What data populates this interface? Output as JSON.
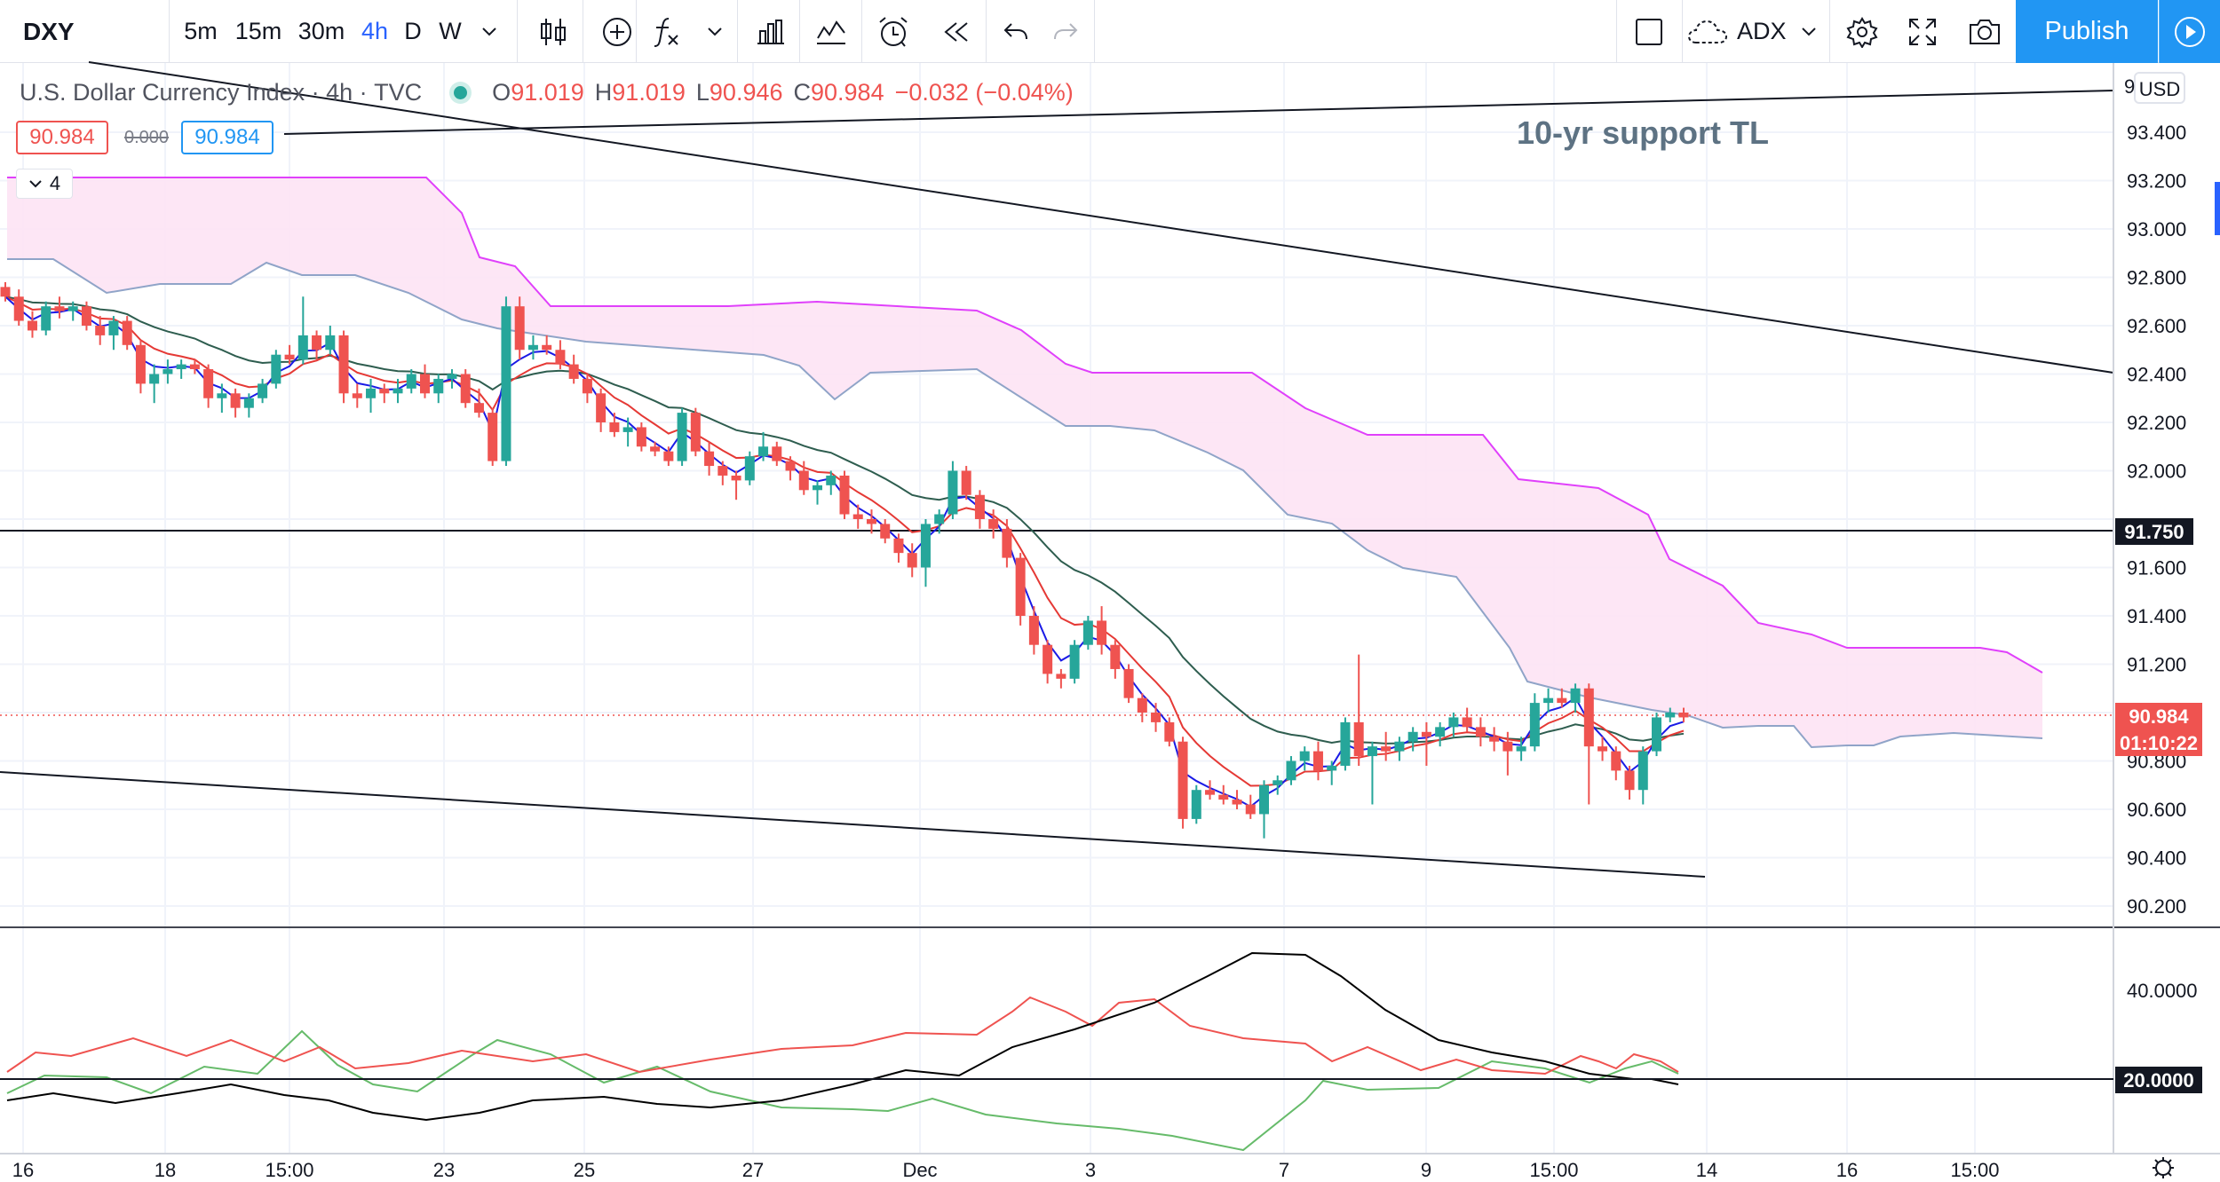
{
  "toolbar": {
    "symbol": "DXY",
    "intervals": [
      "5m",
      "15m",
      "30m",
      "4h",
      "D",
      "W"
    ],
    "active_interval": "4h",
    "indicator_name": "ADX",
    "publish_label": "Publish"
  },
  "legend": {
    "title": "U.S. Dollar Currency Index",
    "interval": "4h",
    "source": "TVC",
    "o_label": "O",
    "o_value": "91.019",
    "h_label": "H",
    "h_value": "91.019",
    "l_label": "L",
    "l_value": "90.946",
    "c_label": "C",
    "c_value": "90.984",
    "change": "−0.032 (−0.04%)",
    "bid": "90.984",
    "spread": "0.000",
    "ask": "90.984",
    "collapsed_count": "4"
  },
  "annotation": "10-yr support TL",
  "price_axis": {
    "currency": "USD",
    "top_cut_label": "9",
    "labels": [
      "93.400",
      "93.200",
      "93.000",
      "92.800",
      "92.600",
      "92.400",
      "92.200",
      "92.000",
      "91.600",
      "91.400",
      "91.200",
      "90.800",
      "90.600",
      "90.400",
      "90.200"
    ],
    "hline_label": "91.750",
    "current_price": "90.984",
    "countdown": "01:10:22"
  },
  "adx_axis": {
    "labels": [
      "40.0000"
    ],
    "level_label": "20.0000"
  },
  "time_axis": {
    "labels": [
      "16",
      "18",
      "15:00",
      "23",
      "25",
      "27",
      "Dec",
      "3",
      "7",
      "9",
      "15:00",
      "14",
      "16",
      "15:00"
    ]
  },
  "colors": {
    "up": "#26a69a",
    "down": "#ef5350",
    "cloud": "#fde3f4",
    "cloud_upper": "#e040fb",
    "cloud_lower": "#90a4c8",
    "ema_fast": "#1a1ae6",
    "ema_mid": "#e53935",
    "ema_slow": "#2e5d4f",
    "adx": "#000000",
    "di_plus": "#66bb6a",
    "di_minus": "#ef5350"
  },
  "chart_data": {
    "type": "candlestick",
    "price_range": [
      90.05,
      93.62
    ],
    "candles": [
      [
        92.76,
        92.78,
        92.7,
        92.72
      ],
      [
        92.72,
        92.75,
        92.6,
        92.62
      ],
      [
        92.62,
        92.66,
        92.55,
        92.58
      ],
      [
        92.58,
        92.7,
        92.56,
        92.68
      ],
      [
        92.68,
        92.72,
        92.63,
        92.66
      ],
      [
        92.66,
        92.7,
        92.62,
        92.68
      ],
      [
        92.68,
        92.7,
        92.58,
        92.6
      ],
      [
        92.6,
        92.64,
        92.52,
        92.56
      ],
      [
        92.56,
        92.64,
        92.5,
        92.62
      ],
      [
        92.62,
        92.64,
        92.5,
        92.52
      ],
      [
        92.52,
        92.54,
        92.32,
        92.36
      ],
      [
        92.36,
        92.44,
        92.28,
        92.4
      ],
      [
        92.4,
        92.46,
        92.36,
        92.42
      ],
      [
        92.42,
        92.46,
        92.38,
        92.44
      ],
      [
        92.44,
        92.46,
        92.4,
        92.42
      ],
      [
        92.42,
        92.44,
        92.26,
        92.3
      ],
      [
        92.3,
        92.36,
        92.24,
        92.32
      ],
      [
        92.32,
        92.34,
        92.22,
        92.26
      ],
      [
        92.26,
        92.32,
        92.22,
        92.3
      ],
      [
        92.3,
        92.38,
        92.28,
        92.36
      ],
      [
        92.36,
        92.5,
        92.34,
        92.48
      ],
      [
        92.48,
        92.52,
        92.44,
        92.46
      ],
      [
        92.46,
        92.72,
        92.44,
        92.56
      ],
      [
        92.56,
        92.58,
        92.46,
        92.5
      ],
      [
        92.5,
        92.6,
        92.48,
        92.56
      ],
      [
        92.56,
        92.58,
        92.28,
        92.32
      ],
      [
        92.32,
        92.36,
        92.26,
        92.3
      ],
      [
        92.3,
        92.38,
        92.24,
        92.34
      ],
      [
        92.34,
        92.36,
        92.28,
        92.32
      ],
      [
        92.32,
        92.38,
        92.28,
        92.34
      ],
      [
        92.34,
        92.42,
        92.32,
        92.4
      ],
      [
        92.4,
        92.44,
        92.3,
        92.32
      ],
      [
        92.32,
        92.4,
        92.28,
        92.38
      ],
      [
        92.38,
        92.42,
        92.34,
        92.4
      ],
      [
        92.4,
        92.42,
        92.26,
        92.28
      ],
      [
        92.28,
        92.34,
        92.22,
        92.24
      ],
      [
        92.24,
        92.26,
        92.02,
        92.04
      ],
      [
        92.04,
        92.72,
        92.02,
        92.68
      ],
      [
        92.68,
        92.72,
        92.46,
        92.5
      ],
      [
        92.5,
        92.56,
        92.46,
        92.52
      ],
      [
        92.52,
        92.56,
        92.48,
        92.5
      ],
      [
        92.5,
        92.54,
        92.42,
        92.44
      ],
      [
        92.44,
        92.48,
        92.36,
        92.38
      ],
      [
        92.38,
        92.4,
        92.28,
        92.32
      ],
      [
        92.32,
        92.34,
        92.16,
        92.2
      ],
      [
        92.2,
        92.24,
        92.14,
        92.16
      ],
      [
        92.16,
        92.22,
        92.1,
        92.18
      ],
      [
        92.18,
        92.2,
        92.08,
        92.1
      ],
      [
        92.1,
        92.12,
        92.06,
        92.08
      ],
      [
        92.08,
        92.1,
        92.02,
        92.04
      ],
      [
        92.04,
        92.26,
        92.02,
        92.24
      ],
      [
        92.24,
        92.26,
        92.06,
        92.08
      ],
      [
        92.08,
        92.12,
        91.98,
        92.02
      ],
      [
        92.02,
        92.04,
        91.94,
        91.98
      ],
      [
        91.98,
        92.0,
        91.88,
        91.96
      ],
      [
        91.96,
        92.08,
        91.94,
        92.06
      ],
      [
        92.06,
        92.16,
        92.04,
        92.1
      ],
      [
        92.1,
        92.12,
        92.02,
        92.04
      ],
      [
        92.04,
        92.06,
        91.96,
        92.0
      ],
      [
        92.0,
        92.04,
        91.9,
        91.92
      ],
      [
        91.92,
        91.96,
        91.86,
        91.94
      ],
      [
        91.94,
        92.0,
        91.9,
        91.98
      ],
      [
        91.98,
        92.0,
        91.8,
        91.82
      ],
      [
        91.82,
        91.86,
        91.76,
        91.8
      ],
      [
        91.8,
        91.84,
        91.74,
        91.78
      ],
      [
        91.78,
        91.8,
        91.7,
        91.72
      ],
      [
        91.72,
        91.74,
        91.62,
        91.66
      ],
      [
        91.66,
        91.7,
        91.56,
        91.6
      ],
      [
        91.6,
        91.8,
        91.52,
        91.78
      ],
      [
        91.78,
        91.84,
        91.74,
        91.82
      ],
      [
        91.82,
        92.04,
        91.8,
        92.0
      ],
      [
        92.0,
        92.02,
        91.88,
        91.9
      ],
      [
        91.9,
        91.92,
        91.76,
        91.8
      ],
      [
        91.8,
        91.84,
        91.72,
        91.76
      ],
      [
        91.76,
        91.8,
        91.6,
        91.64
      ],
      [
        91.64,
        91.66,
        91.36,
        91.4
      ],
      [
        91.4,
        91.44,
        91.24,
        91.28
      ],
      [
        91.28,
        91.3,
        91.12,
        91.16
      ],
      [
        91.16,
        91.18,
        91.1,
        91.14
      ],
      [
        91.14,
        91.3,
        91.12,
        91.28
      ],
      [
        91.28,
        91.4,
        91.26,
        91.38
      ],
      [
        91.38,
        91.44,
        91.24,
        91.28
      ],
      [
        91.28,
        91.3,
        91.14,
        91.18
      ],
      [
        91.18,
        91.2,
        91.04,
        91.06
      ],
      [
        91.06,
        91.08,
        90.96,
        91.0
      ],
      [
        91.0,
        91.04,
        90.92,
        90.96
      ],
      [
        90.96,
        90.98,
        90.86,
        90.88
      ],
      [
        90.88,
        90.9,
        90.52,
        90.56
      ],
      [
        90.56,
        90.7,
        90.54,
        90.68
      ],
      [
        90.68,
        90.72,
        90.64,
        90.66
      ],
      [
        90.66,
        90.7,
        90.62,
        90.64
      ],
      [
        90.64,
        90.68,
        90.6,
        90.62
      ],
      [
        90.62,
        90.66,
        90.56,
        90.58
      ],
      [
        90.58,
        90.72,
        90.48,
        90.7
      ],
      [
        90.7,
        90.74,
        90.66,
        90.72
      ],
      [
        90.72,
        90.82,
        90.7,
        90.8
      ],
      [
        90.8,
        90.86,
        90.76,
        90.84
      ],
      [
        90.84,
        90.88,
        90.72,
        90.76
      ],
      [
        90.76,
        90.8,
        90.7,
        90.78
      ],
      [
        90.78,
        90.98,
        90.76,
        90.96
      ],
      [
        90.96,
        91.24,
        90.78,
        90.82
      ],
      [
        90.82,
        90.88,
        90.62,
        90.86
      ],
      [
        90.86,
        90.92,
        90.8,
        90.84
      ],
      [
        90.84,
        90.9,
        90.8,
        90.88
      ],
      [
        90.88,
        90.94,
        90.84,
        90.92
      ],
      [
        90.92,
        90.96,
        90.78,
        90.9
      ],
      [
        90.9,
        90.96,
        90.86,
        90.94
      ],
      [
        90.94,
        91.0,
        90.9,
        90.98
      ],
      [
        90.98,
        91.02,
        90.92,
        90.94
      ],
      [
        90.94,
        90.98,
        90.86,
        90.9
      ],
      [
        90.9,
        90.94,
        90.84,
        90.88
      ],
      [
        90.88,
        90.92,
        90.74,
        90.84
      ],
      [
        90.84,
        90.9,
        90.8,
        90.86
      ],
      [
        90.86,
        91.08,
        90.84,
        91.04
      ],
      [
        91.04,
        91.1,
        91.0,
        91.06
      ],
      [
        91.06,
        91.1,
        91.02,
        91.04
      ],
      [
        91.04,
        91.12,
        91.0,
        91.1
      ],
      [
        91.1,
        91.12,
        90.62,
        90.86
      ],
      [
        90.86,
        90.9,
        90.8,
        90.84
      ],
      [
        90.84,
        90.86,
        90.72,
        90.76
      ],
      [
        90.76,
        90.78,
        90.64,
        90.68
      ],
      [
        90.68,
        90.86,
        90.62,
        90.84
      ],
      [
        90.84,
        91.0,
        90.82,
        90.98
      ],
      [
        90.98,
        91.02,
        90.96,
        91.0
      ],
      [
        91.0,
        91.02,
        90.96,
        90.98
      ]
    ],
    "hlines": [
      91.75
    ],
    "current_price": 90.984,
    "adx_range": [
      5,
      55
    ],
    "adx_level": 20
  }
}
